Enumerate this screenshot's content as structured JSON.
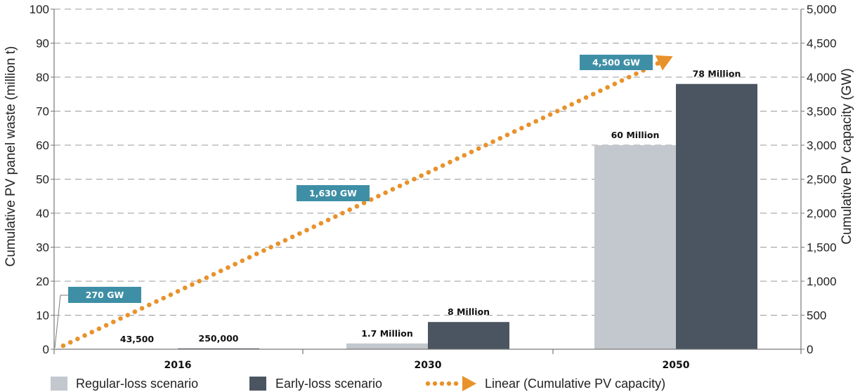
{
  "chart_data": {
    "type": "bar",
    "categories": [
      "2016",
      "2030",
      "2050"
    ],
    "series": [
      {
        "name": "Regular-loss scenario",
        "color": "#c3c7ce",
        "values": [
          0.0435,
          1.7,
          60
        ],
        "labels": [
          "43,500",
          "1.7 Million",
          "60 Million"
        ]
      },
      {
        "name": "Early-loss scenario",
        "color": "#4b5561",
        "values": [
          0.25,
          8,
          78
        ],
        "labels": [
          "250,000",
          "8 Million",
          "78 Million"
        ]
      }
    ],
    "line_series": {
      "name": "Linear (Cumulative PV capacity)",
      "color": "#e8922c",
      "axis": "right",
      "values": [
        0,
        4200
      ],
      "callouts": [
        {
          "label": "270 GW",
          "category": "2016",
          "value": 270
        },
        {
          "label": "1,630 GW",
          "category": "2030",
          "value": 1630
        },
        {
          "label": "4,500 GW",
          "category": "2050",
          "value": 4500
        }
      ]
    },
    "callout_color": "#3e8fa6",
    "ylabel": "Cumulative PV panel waste (million t)",
    "ylim": [
      0,
      100
    ],
    "yticks": [
      "0",
      "10",
      "20",
      "30",
      "40",
      "50",
      "60",
      "70",
      "80",
      "90",
      "100"
    ],
    "y2label": "Cumulative PV capacity (GW)",
    "y2lim": [
      0,
      5000
    ],
    "y2ticks": [
      "0",
      "500",
      "1,000",
      "1,500",
      "2,000",
      "2,500",
      "3,000",
      "3,500",
      "4,000",
      "4,500",
      "5,000"
    ],
    "grid": true,
    "legend": "bottom"
  }
}
